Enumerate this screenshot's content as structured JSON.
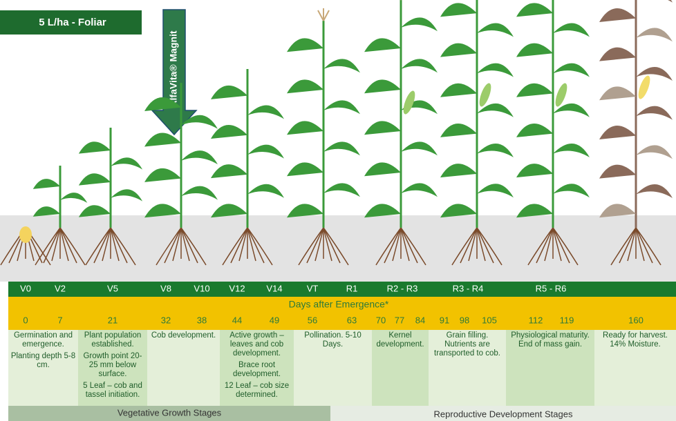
{
  "banner": "5 L/ha - Foliar",
  "product": "AlfaVita® Magnit",
  "stages": [
    "V0",
    "V2",
    "V5",
    "V8",
    "V10",
    "V12",
    "V14",
    "VT",
    "R1",
    "R2 - R3",
    "R3 - R4",
    "R5 - R6"
  ],
  "days_header": "Days after Emergence*",
  "days": [
    0,
    7,
    21,
    32,
    38,
    44,
    49,
    56,
    63,
    70,
    77,
    84,
    91,
    98,
    105,
    112,
    119,
    160
  ],
  "descriptions": [
    [
      "Germination and emergence.",
      "Planting depth 5-8 cm."
    ],
    [
      "Plant population established.",
      "Growth point 20-25 mm below surface.",
      "5 Leaf – cob and tassel initiation."
    ],
    [
      "Cob development."
    ],
    [
      "Active growth – leaves and cob development.",
      "Brace root development.",
      "12 Leaf – cob size determined."
    ],
    [
      "Pollination. 5-10 Days."
    ],
    [
      "Kernel development."
    ],
    [
      "Grain filling. Nutrients are transported to cob."
    ],
    [
      "Physiological maturity. End of mass gain."
    ],
    [
      "Ready for harvest. 14% Moisture."
    ]
  ],
  "phases": [
    "Vegetative Growth Stages",
    "Reproductive Development Stages"
  ]
}
